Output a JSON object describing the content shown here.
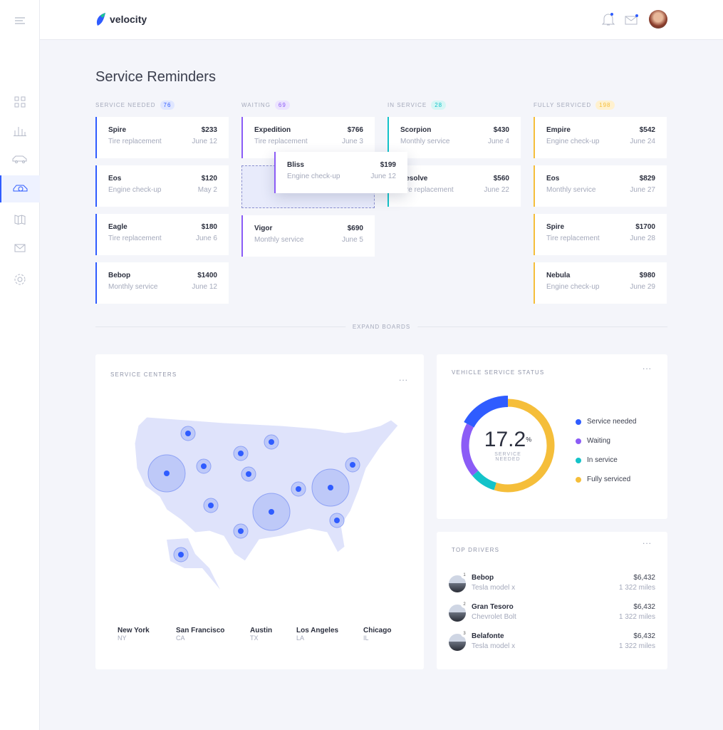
{
  "app": {
    "name": "velocity"
  },
  "page_title": "Service Reminders",
  "columns": [
    {
      "title": "SERVICE NEEDED",
      "count": "76",
      "color": "#2f5cff",
      "badge_bg": "#dfe6ff",
      "cards": [
        {
          "name": "Spire",
          "price": "$233",
          "service": "Tire replacement",
          "date": "June 12"
        },
        {
          "name": "Eos",
          "price": "$120",
          "service": "Engine check-up",
          "date": "May 2"
        },
        {
          "name": "Eagle",
          "price": "$180",
          "service": "Tire replacement",
          "date": "June 6"
        },
        {
          "name": "Bebop",
          "price": "$1400",
          "service": "Monthly service",
          "date": "June 12"
        }
      ]
    },
    {
      "title": "WAITING",
      "count": "69",
      "color": "#8b5cf6",
      "badge_bg": "#ece3ff",
      "cards": [
        {
          "name": "Expedition",
          "price": "$766",
          "service": "Tire replacement",
          "date": "June 3"
        },
        {
          "name": "Vigor",
          "price": "$690",
          "service": "Monthly service",
          "date": "June 5"
        }
      ]
    },
    {
      "title": "IN SERVICE",
      "count": "28",
      "color": "#14c3c9",
      "badge_bg": "#d6f6f5",
      "cards": [
        {
          "name": "Scorpion",
          "price": "$430",
          "service": "Monthly service",
          "date": "June 4"
        },
        {
          "name": "Resolve",
          "price": "$560",
          "service": "Tire replacement",
          "date": "June 22"
        }
      ]
    },
    {
      "title": "FULLY SERVICED",
      "count": "198",
      "color": "#f5be3a",
      "badge_bg": "#fff1cf",
      "cards": [
        {
          "name": "Empire",
          "price": "$542",
          "service": "Engine check-up",
          "date": "June 24"
        },
        {
          "name": "Eos",
          "price": "$829",
          "service": "Monthly service",
          "date": "June 27"
        },
        {
          "name": "Spire",
          "price": "$1700",
          "service": "Tire replacement",
          "date": "June 28"
        },
        {
          "name": "Nebula",
          "price": "$980",
          "service": "Engine check-up",
          "date": "June 29"
        }
      ]
    }
  ],
  "dragging_card": {
    "name": "Bliss",
    "price": "$199",
    "service": "Engine check-up",
    "date": "June 12"
  },
  "expand_label": "EXPAND BOARDS",
  "service_centers": {
    "title": "SERVICE CENTERS",
    "more": "...",
    "cities": [
      {
        "name": "New York",
        "state": "NY"
      },
      {
        "name": "San Francisco",
        "state": "CA"
      },
      {
        "name": "Austin",
        "state": "TX"
      },
      {
        "name": "Los Angeles",
        "state": "LA"
      },
      {
        "name": "Chicago",
        "state": "IL"
      }
    ]
  },
  "vehicle_status": {
    "title": "VEHICLE SERVICE STATUS",
    "more": "...",
    "value": "17.2",
    "unit": "%",
    "caption1": "SERVICE",
    "caption2": "NEEDED",
    "segments": [
      {
        "label": "Service needed",
        "percent": 17.2,
        "color": "#2f5cff"
      },
      {
        "label": "Waiting",
        "percent": 19,
        "color": "#8b5cf6"
      },
      {
        "label": "In service",
        "percent": 9,
        "color": "#14c3c9"
      },
      {
        "label": "Fully serviced",
        "percent": 54.8,
        "color": "#f5be3a"
      }
    ]
  },
  "top_drivers": {
    "title": "TOP DRIVERS",
    "more": "...",
    "drivers": [
      {
        "rank": "1",
        "name": "Bebop",
        "car": "Tesla model x",
        "amount": "$6,432",
        "miles": "1 322 miles"
      },
      {
        "rank": "2",
        "name": "Gran Tesoro",
        "car": "Chevrolet Bolt",
        "amount": "$6,432",
        "miles": "1 322 miles"
      },
      {
        "rank": "3",
        "name": "Belafonte",
        "car": "Tesla model x",
        "amount": "$6,432",
        "miles": "1 322 miles"
      }
    ]
  }
}
